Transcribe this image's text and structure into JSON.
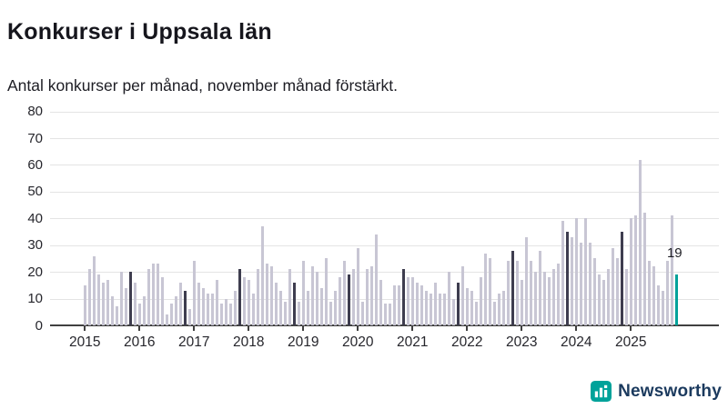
{
  "header": {
    "title": "Konkurser i Uppsala län",
    "subtitle": "Antal konkurser per månad, november månad förstärkt."
  },
  "chart_data": {
    "type": "bar",
    "title": "Konkurser i Uppsala län",
    "subtitle": "Antal konkurser per månad, november månad förstärkt.",
    "xlabel": "",
    "ylabel": "",
    "ylim": [
      0,
      80
    ],
    "y_ticks": [
      0,
      10,
      20,
      30,
      40,
      50,
      60,
      70,
      80
    ],
    "x_tick_labels": [
      "2015",
      "2016",
      "2017",
      "2018",
      "2019",
      "2020",
      "2021",
      "2022",
      "2023",
      "2024",
      "2025"
    ],
    "grid": "horizontal",
    "legend": "none",
    "start_month": "2015-01",
    "end_month": "2025-11",
    "series": [
      {
        "name": "Antal konkurser per månad",
        "values_by_year": {
          "2015": [
            15,
            21,
            26,
            19,
            16,
            17,
            11,
            7,
            20,
            14,
            20,
            16
          ],
          "2016": [
            8,
            11,
            21,
            23,
            23,
            18,
            4,
            8,
            11,
            16,
            13,
            6
          ],
          "2017": [
            24,
            16,
            14,
            12,
            12,
            17,
            8,
            10,
            8,
            13,
            21,
            18
          ],
          "2018": [
            17,
            12,
            21,
            37,
            23,
            22,
            16,
            13,
            9,
            21,
            16,
            9
          ],
          "2019": [
            24,
            13,
            22,
            20,
            14,
            25,
            9,
            13,
            18,
            24,
            19,
            21
          ],
          "2020": [
            29,
            9,
            21,
            22,
            34,
            17,
            8,
            8,
            15,
            15,
            21,
            18
          ],
          "2021": [
            18,
            16,
            15,
            13,
            12,
            16,
            12,
            12,
            20,
            10,
            16,
            22
          ],
          "2022": [
            14,
            13,
            9,
            18,
            27,
            25,
            9,
            12,
            13,
            24,
            28,
            24
          ],
          "2023": [
            17,
            33,
            24,
            20,
            28,
            20,
            18,
            21,
            23,
            39,
            35,
            33
          ],
          "2024": [
            40,
            31,
            40,
            31,
            25,
            19,
            17,
            21,
            29,
            25,
            35,
            21
          ],
          "2025": [
            40,
            41,
            62,
            42,
            24,
            22,
            15,
            13,
            24,
            41,
            19
          ]
        }
      }
    ],
    "highlight": {
      "rule": "Every November bar is drawn darker (förstärkt)",
      "november_month_index": 10,
      "latest_bar": {
        "month": "2025-11",
        "value": 19,
        "label": "19"
      }
    },
    "colors": {
      "bar": "#c8c6d4",
      "november_bar": "#3e3d4f",
      "latest_bar": "#00a29a",
      "gridline": "#e4e4e4",
      "axis": "#404040"
    }
  },
  "annotation": {
    "latest_value_label": "19"
  },
  "logo": {
    "name": "Newsworthy",
    "icon": "bar-chart-logo-icon",
    "color": "#00a29a",
    "text_color": "#1b3a5e"
  }
}
